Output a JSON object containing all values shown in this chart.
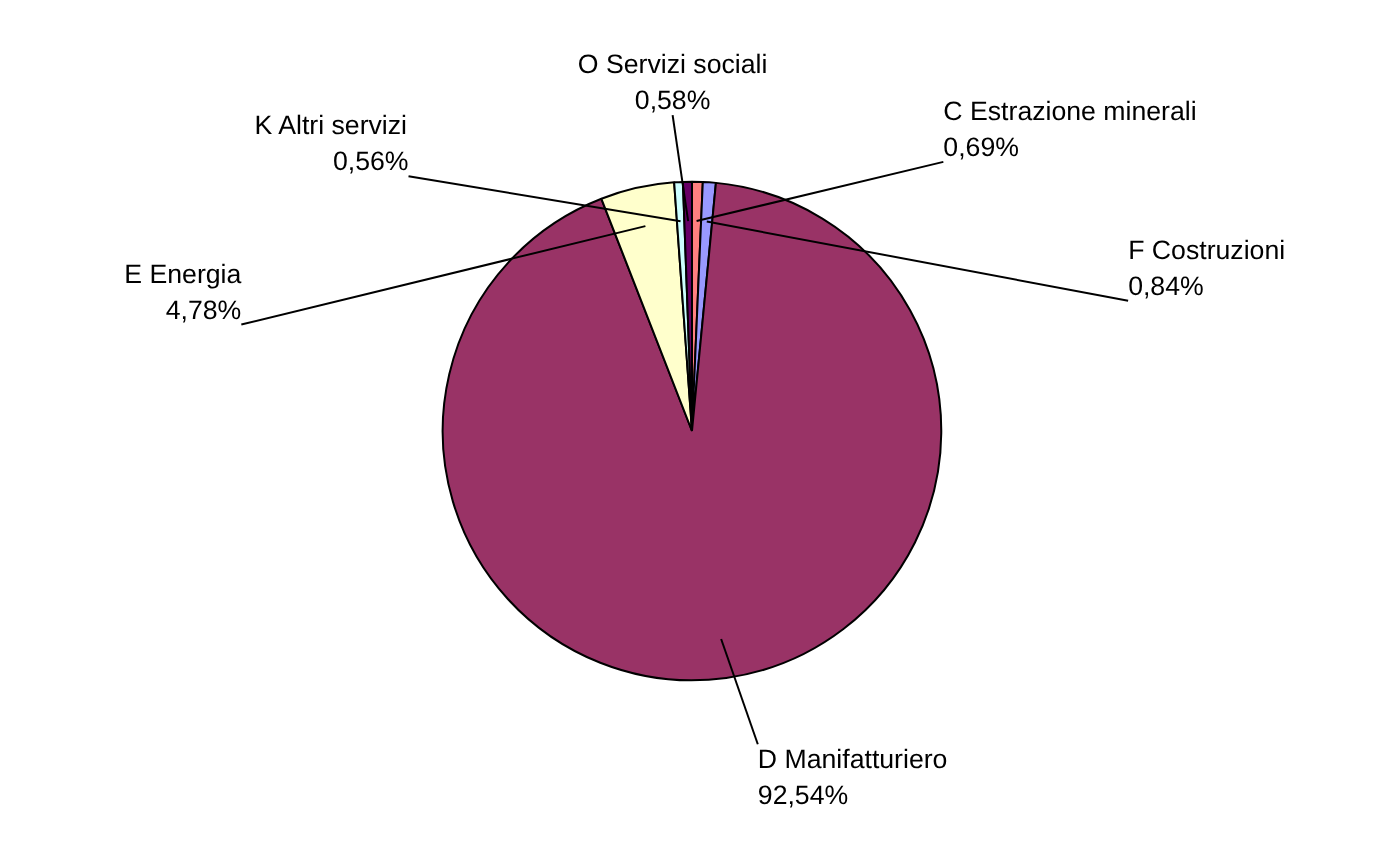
{
  "chart_data": {
    "type": "pie",
    "categories": [
      "C Estrazione minerali",
      "F Costruzioni",
      "D Manifatturiero",
      "E Energia",
      "K Altri servizi",
      "O Servizi sociali"
    ],
    "values": [
      0.69,
      0.84,
      92.54,
      4.78,
      0.56,
      0.58
    ],
    "colors": [
      "#ff8080",
      "#9999ff",
      "#993366",
      "#ffffcc",
      "#ccffff",
      "#660066"
    ],
    "value_labels": [
      "0,69%",
      "0,84%",
      "92,54%",
      "4,78%",
      "0,56%",
      "0,58%"
    ]
  }
}
